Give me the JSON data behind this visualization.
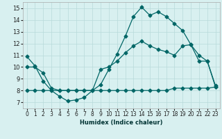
{
  "xlabel": "Humidex (Indice chaleur)",
  "bg_color": "#d8f0f0",
  "line_color": "#006666",
  "grid_color": "#b8dada",
  "xlim": [
    -0.5,
    23.5
  ],
  "ylim": [
    6.5,
    15.5
  ],
  "xticks": [
    0,
    1,
    2,
    3,
    4,
    5,
    6,
    7,
    8,
    9,
    10,
    11,
    12,
    13,
    14,
    15,
    16,
    17,
    18,
    19,
    20,
    21,
    22,
    23
  ],
  "yticks": [
    7,
    8,
    9,
    10,
    11,
    12,
    13,
    14,
    15
  ],
  "line1_x": [
    0,
    1,
    2,
    3,
    4,
    5,
    6,
    7,
    8,
    9,
    10,
    11,
    12,
    13,
    14,
    15,
    16,
    17,
    18,
    19,
    20,
    21,
    22,
    23
  ],
  "line1_y": [
    10.9,
    10.1,
    8.8,
    8.0,
    7.5,
    7.1,
    7.2,
    7.4,
    8.0,
    8.5,
    9.8,
    11.1,
    12.6,
    14.3,
    15.1,
    14.4,
    14.7,
    14.3,
    13.7,
    13.1,
    11.9,
    11.0,
    10.5,
    8.4
  ],
  "line2_x": [
    0,
    1,
    2,
    3,
    4,
    5,
    6,
    7,
    8,
    9,
    10,
    11,
    12,
    13,
    14,
    15,
    16,
    17,
    18,
    19,
    20,
    21,
    22,
    23
  ],
  "line2_y": [
    8.0,
    8.0,
    8.0,
    8.0,
    8.0,
    8.0,
    8.0,
    8.0,
    8.0,
    8.0,
    8.0,
    8.0,
    8.0,
    8.0,
    8.0,
    8.0,
    8.0,
    8.0,
    8.2,
    8.2,
    8.2,
    8.2,
    8.2,
    8.3
  ],
  "line3_x": [
    0,
    1,
    2,
    3,
    4,
    5,
    6,
    7,
    8,
    9,
    10,
    11,
    12,
    13,
    14,
    15,
    16,
    17,
    18,
    19,
    20,
    21,
    22,
    23
  ],
  "line3_y": [
    10.0,
    10.0,
    9.5,
    8.2,
    8.0,
    8.0,
    8.0,
    8.0,
    8.0,
    9.8,
    10.0,
    10.5,
    11.2,
    11.8,
    12.2,
    11.8,
    11.5,
    11.3,
    11.0,
    11.8,
    11.9,
    10.5,
    10.5,
    8.3
  ],
  "xlabel_fontsize": 6,
  "xlabel_color": "#003333",
  "tick_labelsize": 5.5,
  "lw": 0.9,
  "ms": 2.5
}
